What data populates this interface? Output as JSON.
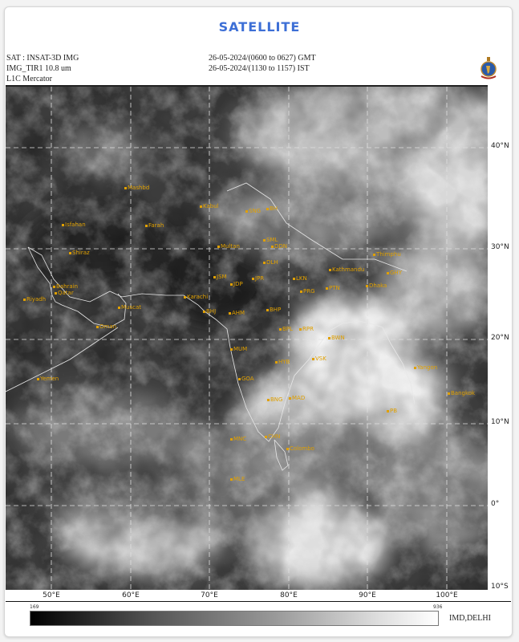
{
  "title": "SATELLITE",
  "header": {
    "satellite": "SAT : INSAT-3D IMG",
    "channel": "IMG_TIR1 10.8 um",
    "projection": "L1C Mercator",
    "time_gmt": "26-05-2024/(0600 to 0627) GMT",
    "time_ist": "26-05-2024/(1130 to 1157) IST"
  },
  "logo": "IMD emblem",
  "lat_labels": [
    "40°N",
    "30°N",
    "20°N",
    "10°N",
    "0°",
    "10°S"
  ],
  "lon_labels": [
    "50°E",
    "60°E",
    "70°E",
    "80°E",
    "90°E",
    "100°E"
  ],
  "colorbar": {
    "min": "169",
    "max": "936",
    "scale": "black to white"
  },
  "credit": "IMD,DELHI",
  "cities": [
    "Mashbd",
    "Kabul",
    "Isfahan",
    "Farah",
    "SNG",
    "BH",
    "Multan",
    "SML",
    "DDN",
    "Shiraz",
    "DLH",
    "JSM",
    "JDP",
    "JPR",
    "LKN",
    "Bahrain",
    "Qatar",
    "Riyadh",
    "PRG",
    "PTN",
    "Karachi",
    "Muscat",
    "BHJ",
    "AHM",
    "BHP",
    "Oman",
    "MUM",
    "BPL",
    "RPR",
    "BWN",
    "VSK",
    "HYB",
    "GOA",
    "Yemen",
    "BNG",
    "MAD",
    "MNC",
    "CHN",
    "Colombo",
    "MLE",
    "Yangon",
    "Bangkok",
    "PB",
    "Kathmandu",
    "Thimphu",
    "Dhaka",
    "GHY"
  ],
  "colors": {
    "title": "#3d6fd6",
    "city_label": "#e0a000",
    "coastline": "#ffffff"
  }
}
